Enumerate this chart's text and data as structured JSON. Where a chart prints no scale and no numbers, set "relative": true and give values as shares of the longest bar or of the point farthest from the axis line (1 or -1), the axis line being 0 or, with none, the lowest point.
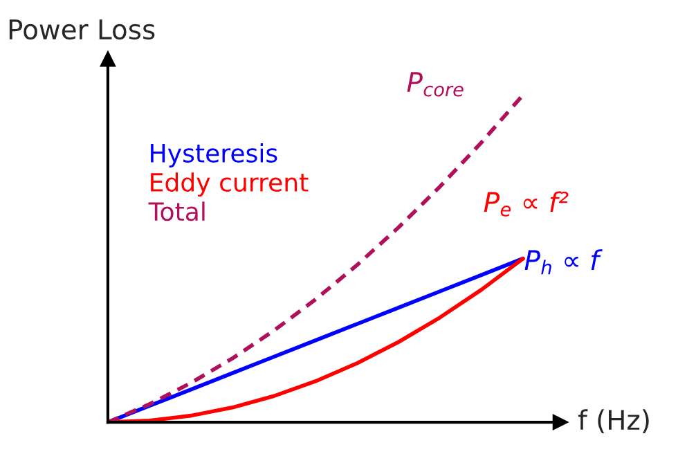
{
  "chart_data": {
    "type": "line",
    "relative": true,
    "ylabel": "Power Loss",
    "xlabel": "f (Hz)",
    "categories": [
      null,
      null,
      null,
      null,
      null,
      null,
      null,
      null,
      null,
      null,
      null
    ],
    "series": [
      {
        "name": "Hysteresis",
        "color": "#0000ff",
        "line_style": "solid",
        "values": [
          0,
          0.05,
          0.1,
          0.15,
          0.2,
          0.25,
          0.3,
          0.35,
          0.4,
          0.45,
          0.5
        ]
      },
      {
        "name": "Eddy current",
        "color": "#ff0000",
        "line_style": "solid",
        "values": [
          0,
          0.005,
          0.02,
          0.045,
          0.08,
          0.125,
          0.18,
          0.245,
          0.32,
          0.405,
          0.5
        ]
      },
      {
        "name": "Total",
        "color": "#b0105a",
        "line_style": "dashed",
        "values": [
          0,
          0.055,
          0.12,
          0.195,
          0.28,
          0.375,
          0.48,
          0.595,
          0.72,
          0.855,
          1
        ]
      }
    ],
    "annotations": [
      "P$_{core}$",
      "P$_{e}$ ∝ f²",
      "P$_{h}$ ∝ f"
    ],
    "legend": "top left",
    "marker": "none"
  }
}
